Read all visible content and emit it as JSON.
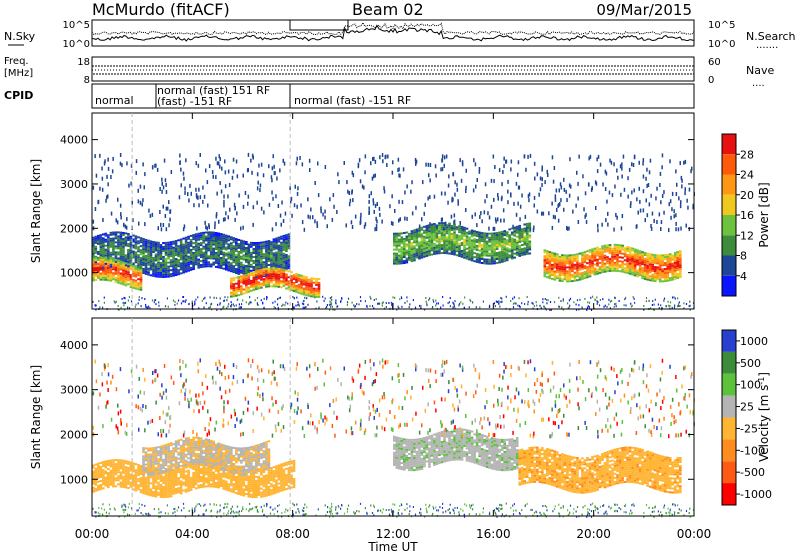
{
  "header": {
    "title": "McMurdo (fitACF)",
    "beam": "Beam 02",
    "date": "09/Mar/2015"
  },
  "strip_labels": {
    "nsky": "N.Sky",
    "nsearch": "N.Search",
    "nsearch_dots": ".......",
    "freq_line1": "Freq.",
    "freq_line2": "[MHz]",
    "nave": "Nave",
    "nave_dots": "....",
    "cpid": "CPID",
    "noise_top": "10^5",
    "noise_bottom": "10^0",
    "freq_top": "18",
    "freq_bottom": "8",
    "nave_top": "60",
    "nave_bottom": "0"
  },
  "cpid_modes": [
    {
      "label": "normal",
      "start_hour": 0.0
    },
    {
      "label": "normal (fast) 151 RF",
      "start_hour": 1.6
    },
    {
      "label": "(fast) -151 RF",
      "start_hour": 1.6
    },
    {
      "label": "normal (fast) -151 RF",
      "start_hour": 7.9
    }
  ],
  "chart_data": [
    {
      "type": "heatmap",
      "name": "power",
      "title": "",
      "xlabel": "",
      "ylabel": "Slant Range [km]",
      "x_ticks_hours": [
        0,
        4,
        8,
        12,
        16,
        20,
        24
      ],
      "y_ticks": [
        "1000",
        "2000",
        "3000",
        "4000"
      ],
      "xlim": [
        0,
        24
      ],
      "ylim": [
        180,
        4600
      ],
      "colorbar": {
        "label": "Power [dB]",
        "range": [
          0,
          30
        ],
        "tick_labels": [
          "4",
          "8",
          "12",
          "16",
          "20",
          "24",
          "28"
        ],
        "colors": [
          "#0a14ff",
          "#1e4696",
          "#3c8c3c",
          "#6cc23c",
          "#f0c81e",
          "#ff9614",
          "#ff5a0a",
          "#e81010"
        ]
      },
      "echo_regions": [
        {
          "t0": 0.0,
          "t1": 7.8,
          "range_km": [
            1000,
            1800
          ],
          "value_dB": 9
        },
        {
          "t0": 0.0,
          "t1": 2.0,
          "range_km": [
            700,
            1200
          ],
          "value_dB": 28
        },
        {
          "t0": 5.5,
          "t1": 9.0,
          "range_km": [
            550,
            1000
          ],
          "value_dB": 30
        },
        {
          "t0": 12.0,
          "t1": 17.5,
          "range_km": [
            1300,
            2000
          ],
          "value_dB": 14
        },
        {
          "t0": 18.0,
          "t1": 23.5,
          "range_km": [
            900,
            1500
          ],
          "value_dB": 28
        }
      ]
    },
    {
      "type": "heatmap",
      "name": "velocity",
      "title": "",
      "xlabel": "Time UT",
      "ylabel": "Slant Range [km]",
      "x_ticks_hours": [
        0,
        4,
        8,
        12,
        16,
        20,
        24
      ],
      "y_ticks": [
        "1000",
        "2000",
        "3000",
        "4000"
      ],
      "xlim": [
        0,
        24
      ],
      "ylim": [
        180,
        4600
      ],
      "colorbar": {
        "label": "Velocity [m s^-1]",
        "range": [
          -1200,
          1200
        ],
        "tick_labels": [
          "1000",
          "500",
          "100",
          "25",
          "-25",
          "-100",
          "-500",
          "-1000"
        ],
        "colors": [
          "#2840d0",
          "#3c8c3c",
          "#5cc23c",
          "#b4b4b4",
          "#ffb432",
          "#ff8c1e",
          "#ff5a14",
          "#ff0000"
        ]
      },
      "echo_regions": [
        {
          "t0": 0.0,
          "t1": 8.0,
          "range_km": [
            700,
            1300
          ],
          "value_ms": -150
        },
        {
          "t0": 2.0,
          "t1": 7.0,
          "range_km": [
            1200,
            1800
          ],
          "value_ms": 25
        },
        {
          "t0": 12.0,
          "t1": 17.0,
          "range_km": [
            1300,
            2000
          ],
          "value_ms": 200
        },
        {
          "t0": 17.0,
          "t1": 23.5,
          "range_km": [
            800,
            1600
          ],
          "value_ms": -200
        }
      ]
    }
  ],
  "time_tick_labels": [
    "00:00",
    "04:00",
    "08:00",
    "12:00",
    "16:00",
    "20:00",
    "00:00"
  ],
  "x_axis_title": "Time UT"
}
